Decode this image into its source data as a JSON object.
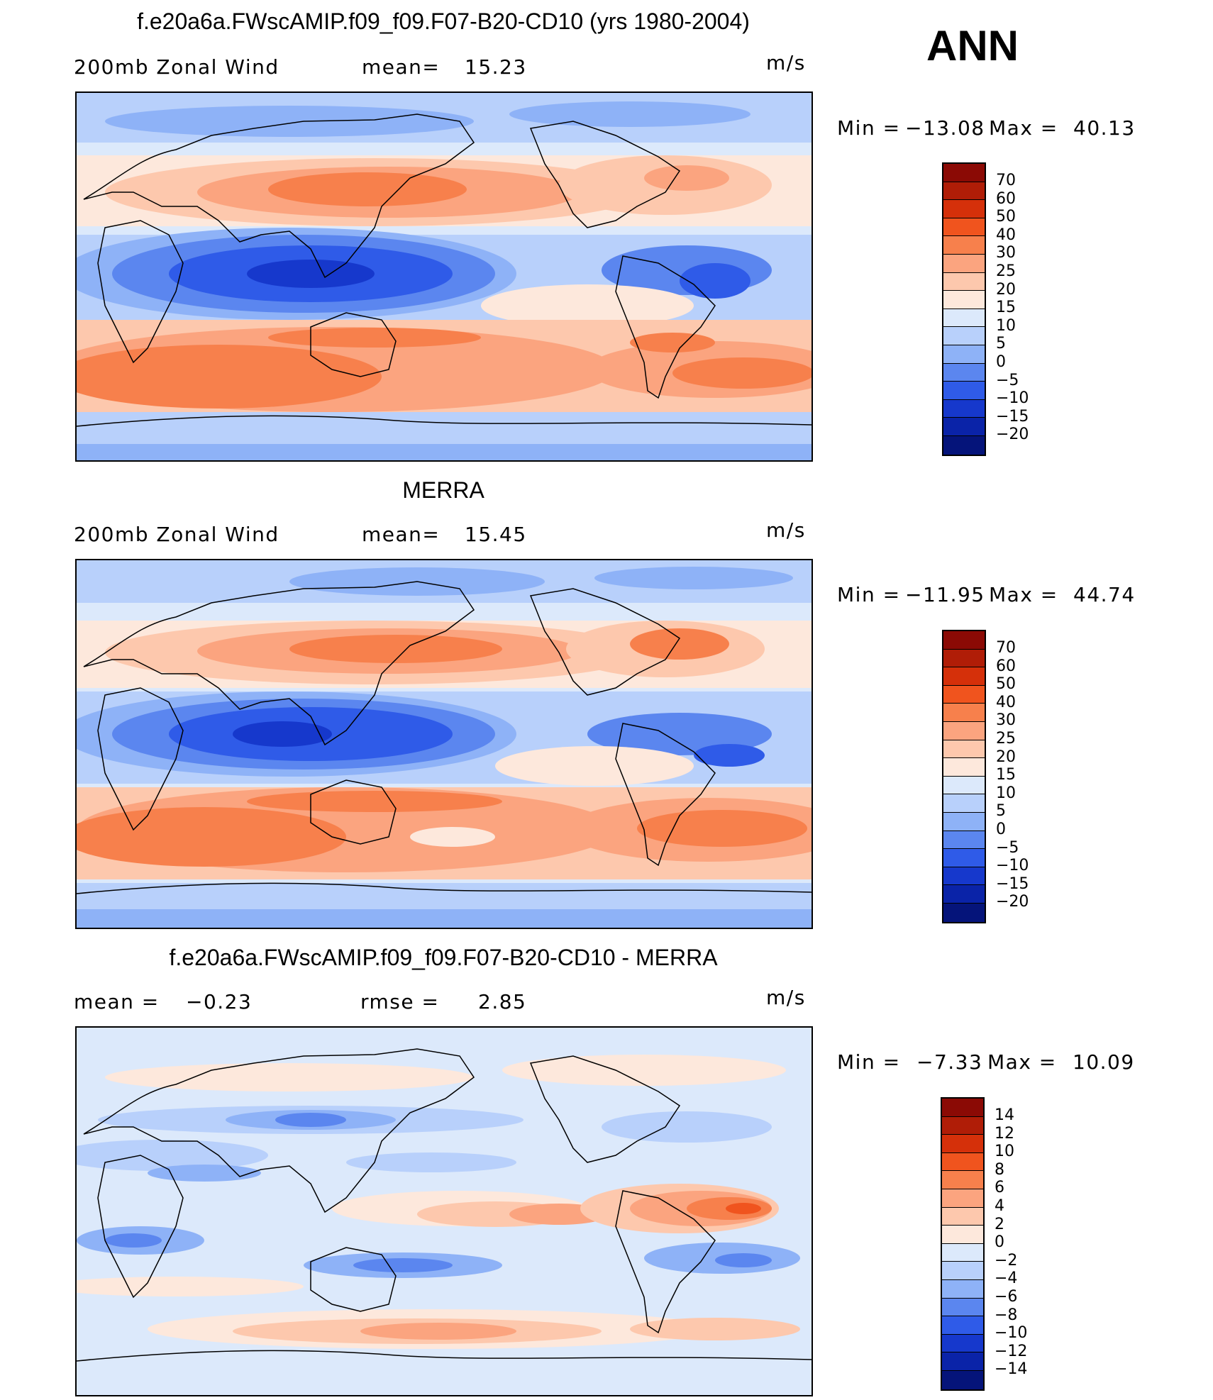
{
  "season": "ANN",
  "panels": [
    {
      "title": "f.e20a6a.FWscAMIP.f09_f09.F07-B20-CD10 (yrs 1980-2004)",
      "left_label": "200mb Zonal Wind",
      "stat_label": "mean=",
      "stat_value": "15.23",
      "units": "m/s",
      "min_label": "Min =",
      "min_value": "−13.08",
      "max_label": "Max =",
      "max_value": "40.13"
    },
    {
      "title": "MERRA",
      "left_label": "200mb Zonal Wind",
      "stat_label": "mean=",
      "stat_value": "15.45",
      "units": "m/s",
      "min_label": "Min =",
      "min_value": "−11.95",
      "max_label": "Max =",
      "max_value": "44.74"
    },
    {
      "title": "f.e20a6a.FWscAMIP.f09_f09.F07-B20-CD10 - MERRA",
      "left_label": "mean =",
      "left_value": "−0.23",
      "stat_label": "rmse =",
      "stat_value": "2.85",
      "units": "m/s",
      "min_label": "Min =",
      "min_value": "−7.33",
      "max_label": "Max =",
      "max_value": "10.09"
    }
  ],
  "colorbars": {
    "wind": {
      "ticks": [
        "70",
        "60",
        "50",
        "40",
        "30",
        "25",
        "20",
        "15",
        "10",
        "5",
        "0",
        "−5",
        "−10",
        "−15",
        "−20"
      ],
      "colors": [
        "#8b0a05",
        "#b01d07",
        "#d5300a",
        "#f0541e",
        "#f7804c",
        "#fba47f",
        "#fdc8ad",
        "#fde8dc",
        "#dce9fb",
        "#b8d0fb",
        "#8eb2f7",
        "#5b86ef",
        "#2f5be8",
        "#1638cc",
        "#0a23a8",
        "#05147a"
      ]
    },
    "diff": {
      "ticks": [
        "14",
        "12",
        "10",
        "8",
        "6",
        "4",
        "2",
        "0",
        "−2",
        "−4",
        "−6",
        "−8",
        "−10",
        "−12",
        "−14"
      ],
      "colors": [
        "#8b0a05",
        "#b01d07",
        "#d5300a",
        "#f0541e",
        "#f7804c",
        "#fba47f",
        "#fdc8ad",
        "#fde8dc",
        "#dce9fb",
        "#b8d0fb",
        "#8eb2f7",
        "#5b86ef",
        "#2f5be8",
        "#1638cc",
        "#0a23a8",
        "#05147a"
      ]
    }
  }
}
